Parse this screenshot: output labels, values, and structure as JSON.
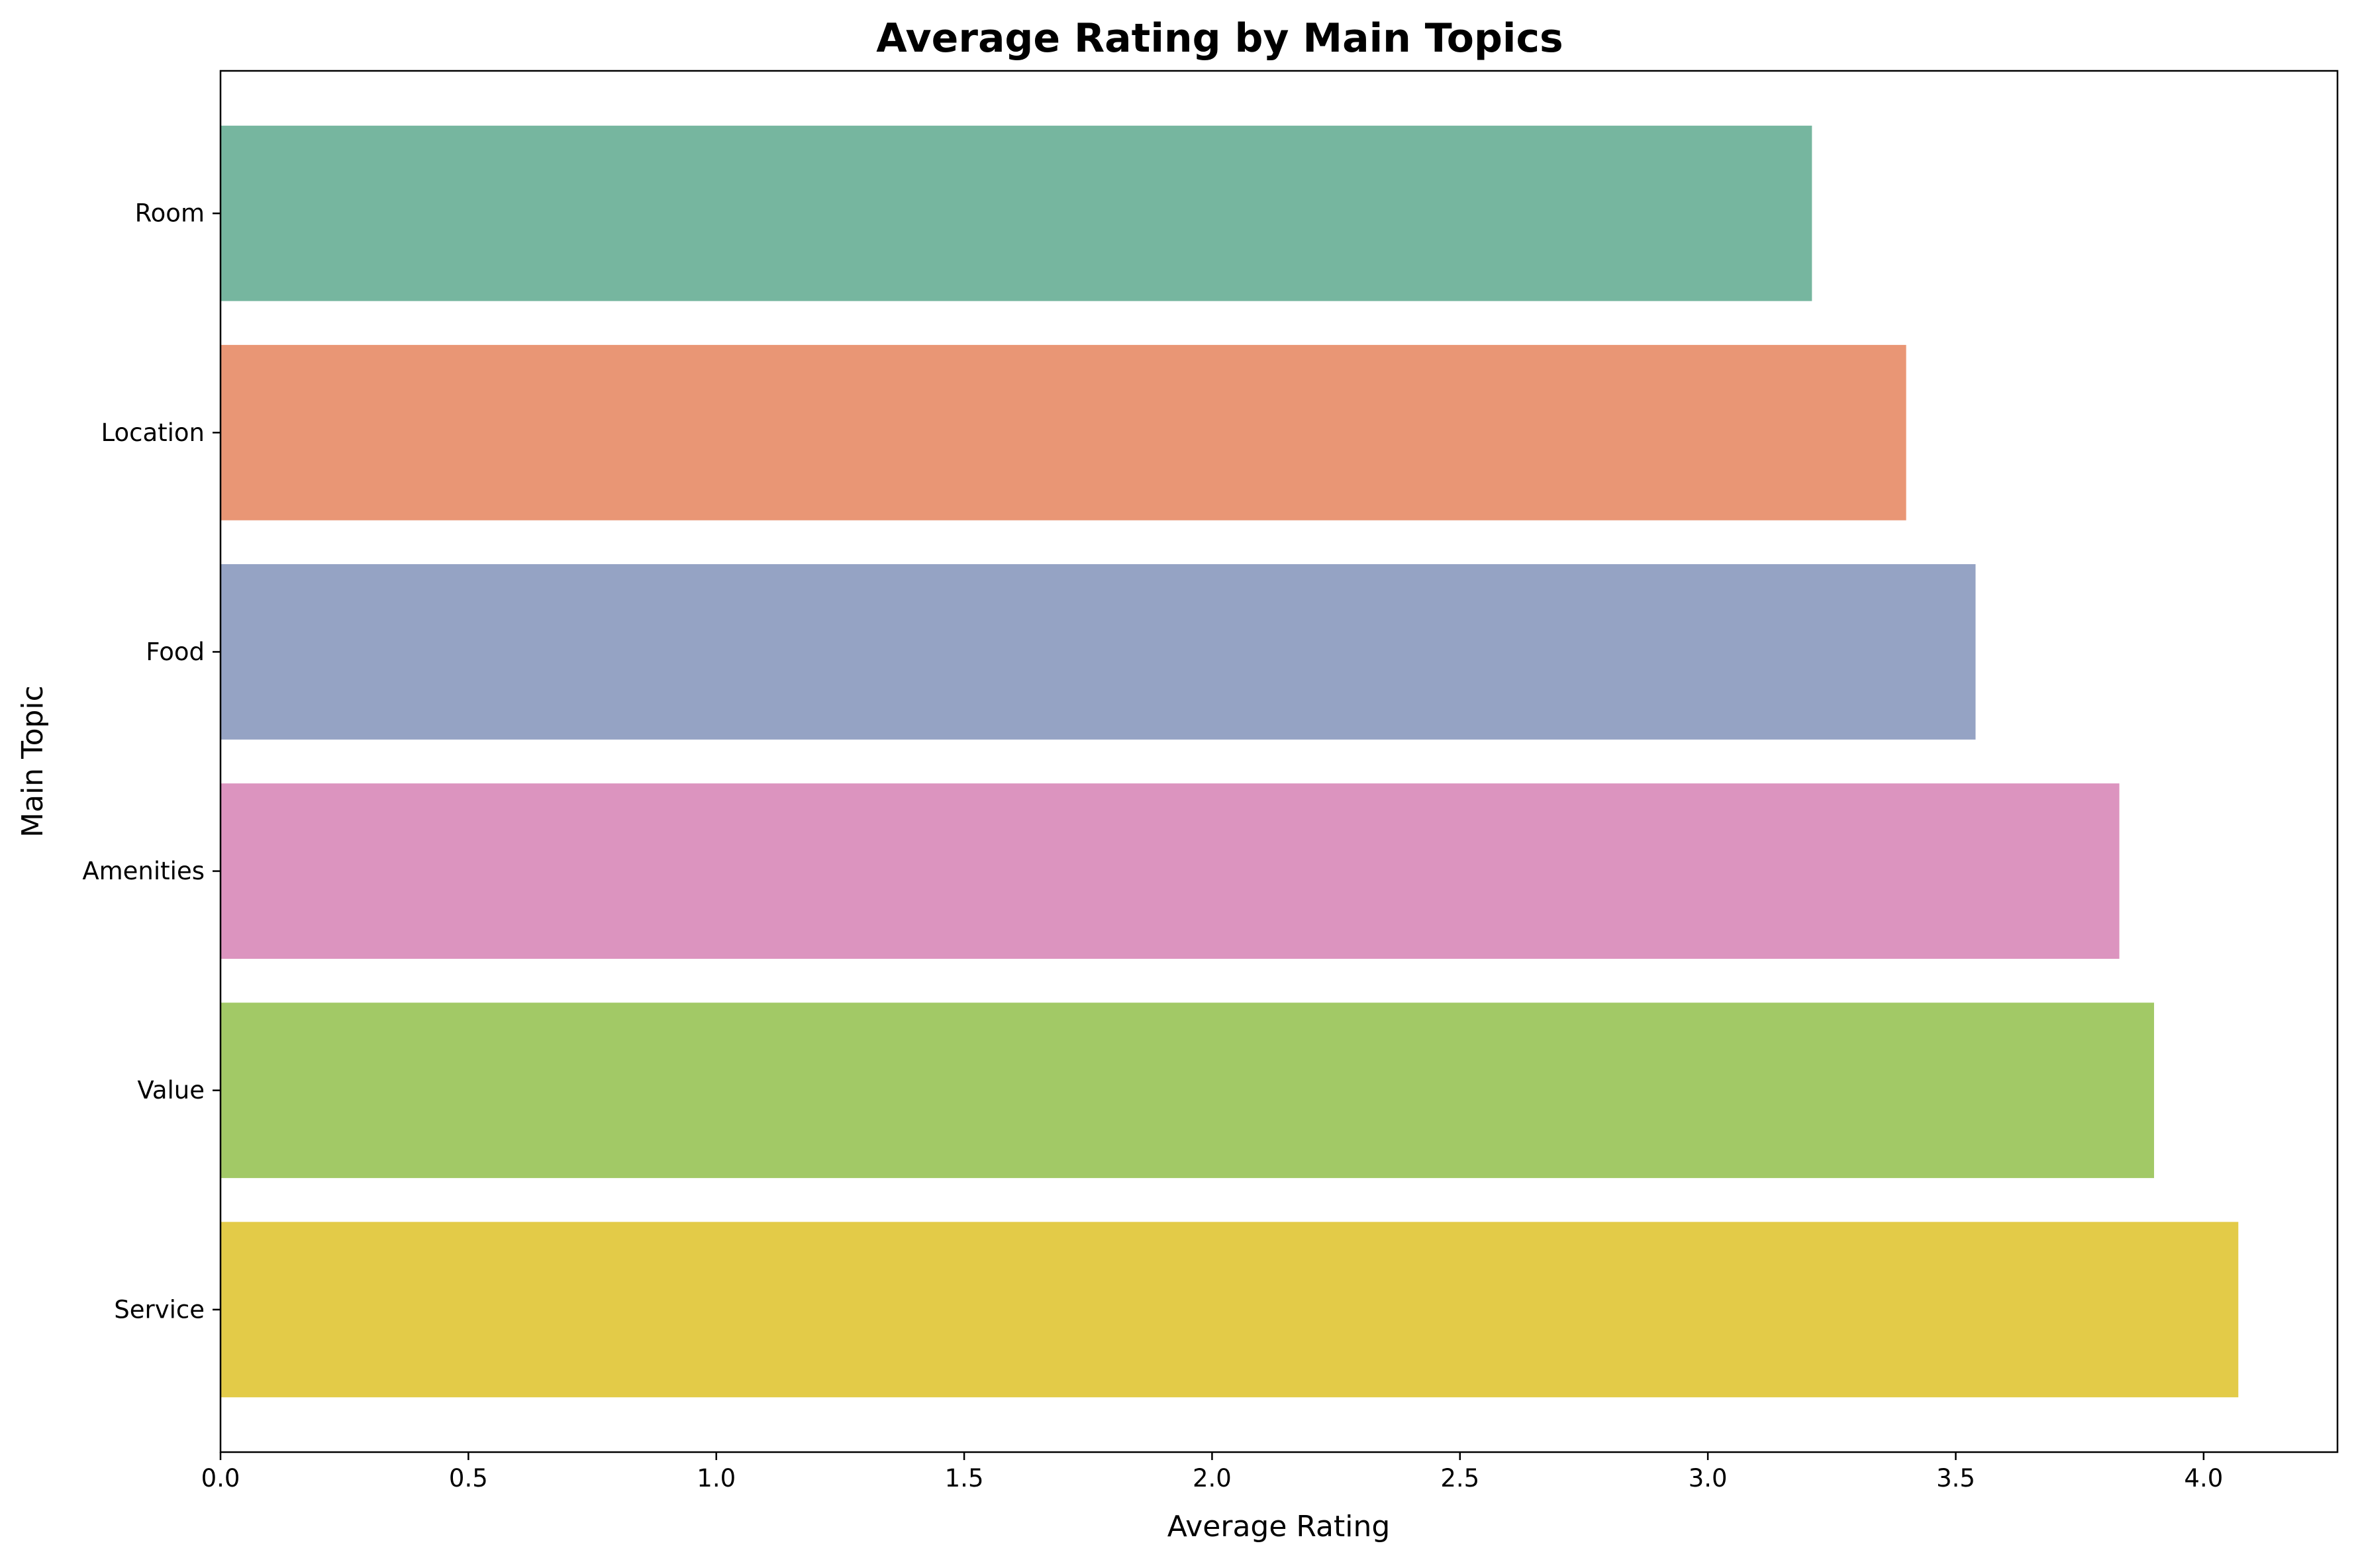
{
  "chart_data": {
    "type": "bar",
    "orientation": "horizontal",
    "title": "Average Rating by Main Topics",
    "xlabel": "Average Rating",
    "ylabel": "Main Topic",
    "categories": [
      "Room",
      "Location",
      "Food",
      "Amenities",
      "Value",
      "Service"
    ],
    "values": [
      3.21,
      3.4,
      3.54,
      3.83,
      3.9,
      4.07
    ],
    "colors": [
      "#76b69f",
      "#e99675",
      "#95a3c4",
      "#dc94bf",
      "#a2c966",
      "#e3cb48"
    ],
    "xlim": [
      0,
      4.27
    ],
    "xticks": [
      "0.0",
      "0.5",
      "1.0",
      "1.5",
      "2.0",
      "2.5",
      "3.0",
      "3.5",
      "4.0"
    ],
    "grid": false,
    "legend": "none"
  }
}
